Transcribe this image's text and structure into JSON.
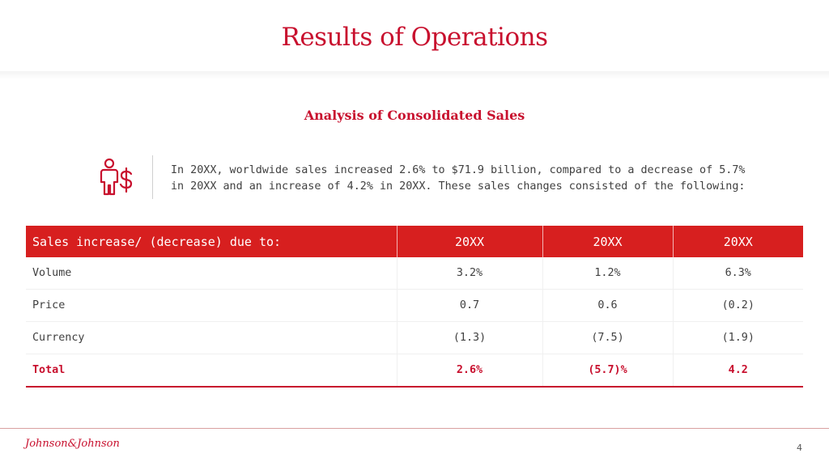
{
  "slide": {
    "title": "Results of Operations",
    "subtitle": "Analysis of Consolidated Sales",
    "summary_line1": "In 20XX, worldwide sales increased 2.6% to $71.9 billion, compared to a decrease of 5.7%",
    "summary_line2": "in 20XX and an increase of 4.2% in 20XX. These sales changes consisted of the following:",
    "icon": "person-dollar-icon",
    "accent_color": "#c8102e",
    "header_color": "#d71f1f"
  },
  "table": {
    "headers": [
      "Sales increase/ (decrease) due to:",
      "20XX",
      "20XX",
      "20XX"
    ],
    "rows": [
      [
        "Volume",
        "3.2%",
        "1.2%",
        "6.3%"
      ],
      [
        "Price",
        "0.7",
        "0.6",
        "(0.2)"
      ],
      [
        "Currency",
        "(1.3)",
        "(7.5)",
        "(1.9)"
      ]
    ],
    "total": [
      "Total",
      "2.6%",
      "(5.7)%",
      "4.2"
    ]
  },
  "footer": {
    "logo_text": "Johnson&Johnson",
    "page_number": "4"
  }
}
